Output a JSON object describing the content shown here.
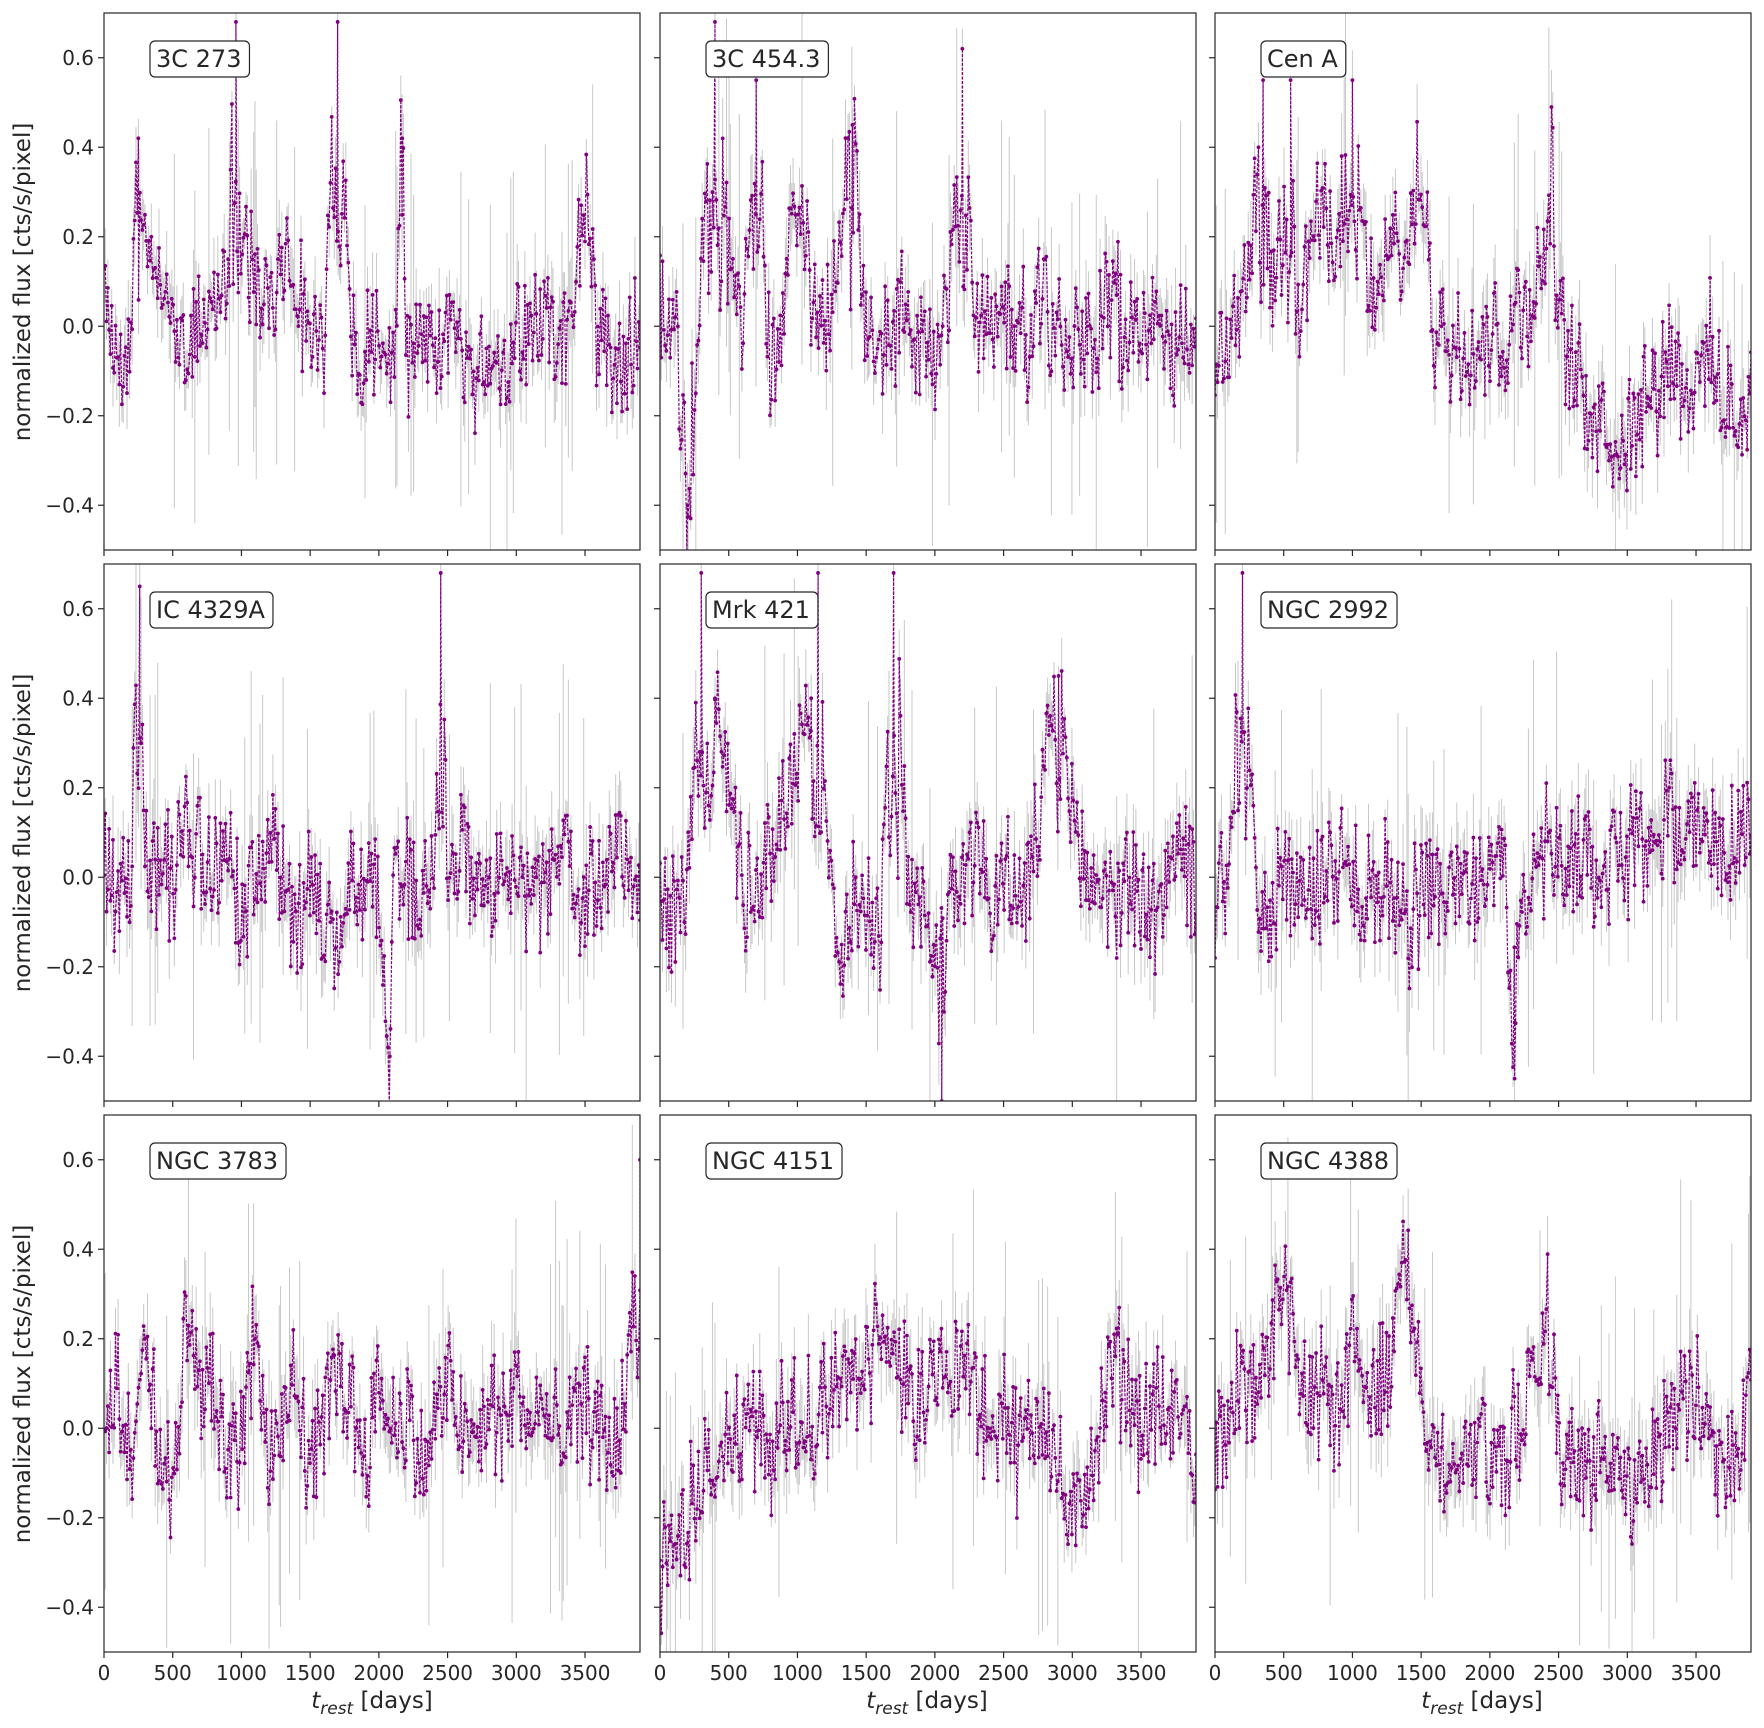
{
  "figure": {
    "ylabel": "normalized flux [cts/s/pixel]",
    "xlabel_main": "t",
    "xlabel_sub": "rest",
    "xlabel_unit": " [days]"
  },
  "colors": {
    "line": "#800080",
    "errorbar": "#c8c8c8",
    "axes": "#262626"
  },
  "chart_data": [
    {
      "type": "line",
      "title": "3C 273",
      "xlim": [
        0,
        3900
      ],
      "ylim": [
        -0.5,
        0.7
      ],
      "xticks": [
        0,
        500,
        1000,
        1500,
        2000,
        2500,
        3000,
        3500
      ],
      "yticks": [
        -0.4,
        -0.2,
        0.0,
        0.2,
        0.4,
        0.6
      ],
      "series": [
        {
          "x": [
            0,
            100,
            200,
            250,
            300,
            400,
            500,
            600,
            700,
            800,
            900,
            960,
            1000,
            1100,
            1200,
            1300,
            1400,
            1500,
            1600,
            1700,
            1800,
            1900,
            2000,
            2100,
            2170,
            2200,
            2300,
            2400,
            2500,
            2600,
            2700,
            2800,
            2900,
            3000,
            3100,
            3200,
            3300,
            3400,
            3500,
            3600,
            3700,
            3800,
            3900
          ],
          "y": [
            0.1,
            -0.1,
            0.0,
            0.42,
            0.15,
            0.1,
            0.05,
            -0.05,
            0.0,
            0.05,
            0.1,
            0.68,
            0.15,
            0.1,
            0.05,
            0.2,
            0.1,
            0.0,
            -0.05,
            0.68,
            -0.05,
            -0.05,
            0.0,
            -0.1,
            0.42,
            -0.05,
            -0.05,
            0.0,
            -0.05,
            -0.05,
            -0.1,
            -0.05,
            -0.1,
            -0.05,
            0.0,
            0.05,
            -0.05,
            0.0,
            0.3,
            -0.05,
            -0.1,
            -0.1,
            0.0
          ]
        }
      ]
    },
    {
      "type": "line",
      "title": "3C 454.3",
      "xlim": [
        0,
        3900
      ],
      "ylim": [
        -0.5,
        0.7
      ],
      "xticks": [
        0,
        500,
        1000,
        1500,
        2000,
        2500,
        3000,
        3500
      ],
      "yticks": [
        -0.4,
        -0.2,
        0.0,
        0.2,
        0.4,
        0.6
      ],
      "series": [
        {
          "x": [
            0,
            100,
            200,
            300,
            400,
            500,
            600,
            700,
            800,
            900,
            1000,
            1100,
            1200,
            1300,
            1400,
            1500,
            1600,
            1700,
            1800,
            1900,
            2000,
            2100,
            2200,
            2300,
            2400,
            2500,
            2600,
            2700,
            2800,
            2900,
            3000,
            3100,
            3200,
            3300,
            3400,
            3500,
            3600,
            3700,
            3800,
            3900
          ],
          "y": [
            0.0,
            0.05,
            -0.4,
            0.1,
            0.68,
            0.1,
            0.0,
            0.55,
            -0.1,
            0.0,
            0.3,
            0.1,
            0.0,
            0.2,
            0.45,
            0.0,
            -0.05,
            0.0,
            0.0,
            -0.05,
            -0.1,
            0.0,
            0.62,
            0.0,
            0.0,
            0.05,
            -0.05,
            0.0,
            0.05,
            -0.05,
            0.0,
            -0.05,
            0.0,
            0.05,
            0.0,
            -0.05,
            0.0,
            -0.05,
            0.0,
            -0.05
          ]
        }
      ]
    },
    {
      "type": "line",
      "title": "Cen A",
      "xlim": [
        0,
        3900
      ],
      "ylim": [
        -0.5,
        0.7
      ],
      "xticks": [
        0,
        500,
        1000,
        1500,
        2000,
        2500,
        3000,
        3500
      ],
      "yticks": [
        -0.4,
        -0.2,
        0.0,
        0.2,
        0.4,
        0.6
      ],
      "series": [
        {
          "x": [
            0,
            100,
            200,
            300,
            350,
            400,
            500,
            550,
            600,
            700,
            800,
            900,
            1000,
            1100,
            1200,
            1300,
            1400,
            1500,
            1600,
            1700,
            1800,
            1900,
            2000,
            2100,
            2200,
            2300,
            2400,
            2450,
            2500,
            2600,
            2700,
            2800,
            2900,
            3000,
            3100,
            3200,
            3300,
            3400,
            3500,
            3600,
            3700,
            3800,
            3900
          ],
          "y": [
            -0.1,
            -0.05,
            0.0,
            0.3,
            0.55,
            0.1,
            0.2,
            0.55,
            0.0,
            0.2,
            0.25,
            0.15,
            0.55,
            0.1,
            0.05,
            0.2,
            0.15,
            0.35,
            0.0,
            -0.05,
            0.0,
            -0.05,
            0.0,
            -0.05,
            0.05,
            0.05,
            0.15,
            0.35,
            0.0,
            -0.1,
            -0.15,
            -0.2,
            -0.25,
            -0.25,
            -0.15,
            -0.15,
            -0.05,
            -0.1,
            -0.15,
            -0.05,
            -0.2,
            -0.2,
            -0.15
          ]
        }
      ]
    },
    {
      "type": "line",
      "title": "IC 4329A",
      "xlim": [
        0,
        3900
      ],
      "ylim": [
        -0.5,
        0.7
      ],
      "xticks": [
        0,
        500,
        1000,
        1500,
        2000,
        2500,
        3000,
        3500
      ],
      "yticks": [
        -0.4,
        -0.2,
        0.0,
        0.2,
        0.4,
        0.6
      ],
      "series": [
        {
          "x": [
            0,
            100,
            200,
            260,
            300,
            400,
            500,
            600,
            700,
            800,
            900,
            1000,
            1100,
            1200,
            1300,
            1400,
            1500,
            1600,
            1700,
            1800,
            1900,
            2000,
            2080,
            2100,
            2200,
            2300,
            2400,
            2450,
            2500,
            2600,
            2700,
            2800,
            2900,
            3000,
            3100,
            3200,
            3300,
            3400,
            3500,
            3600,
            3700,
            3800,
            3900
          ],
          "y": [
            0.05,
            -0.05,
            0.0,
            0.65,
            0.0,
            0.05,
            0.0,
            0.1,
            0.05,
            0.0,
            0.05,
            -0.05,
            0.0,
            0.05,
            0.0,
            -0.1,
            -0.05,
            -0.1,
            -0.2,
            0.0,
            -0.05,
            0.0,
            -0.4,
            0.0,
            0.0,
            -0.05,
            0.05,
            0.68,
            0.0,
            0.05,
            0.0,
            -0.05,
            0.0,
            -0.05,
            0.0,
            -0.05,
            0.05,
            0.0,
            -0.05,
            0.0,
            0.05,
            0.0,
            0.0
          ]
        }
      ]
    },
    {
      "type": "line",
      "title": "Mrk 421",
      "xlim": [
        0,
        3900
      ],
      "ylim": [
        -0.5,
        0.7
      ],
      "xticks": [
        0,
        500,
        1000,
        1500,
        2000,
        2500,
        3000,
        3500
      ],
      "yticks": [
        -0.4,
        -0.2,
        0.0,
        0.2,
        0.4,
        0.6
      ],
      "series": [
        {
          "x": [
            0,
            100,
            200,
            300,
            400,
            500,
            600,
            700,
            800,
            900,
            1000,
            1100,
            1150,
            1200,
            1300,
            1400,
            1500,
            1600,
            1700,
            1800,
            1900,
            2000,
            2050,
            2100,
            2200,
            2300,
            2400,
            2500,
            2600,
            2700,
            2800,
            2900,
            3000,
            3100,
            3200,
            3300,
            3400,
            3500,
            3600,
            3700,
            3800,
            3900
          ],
          "y": [
            -0.05,
            -0.1,
            -0.05,
            0.68,
            0.4,
            0.2,
            0.0,
            -0.05,
            0.05,
            0.15,
            0.3,
            0.4,
            0.68,
            0.1,
            -0.2,
            -0.05,
            -0.05,
            -0.1,
            0.68,
            -0.05,
            -0.05,
            -0.1,
            -0.5,
            -0.05,
            0.0,
            0.1,
            -0.05,
            0.0,
            -0.05,
            0.0,
            0.2,
            0.45,
            0.1,
            0.0,
            0.0,
            -0.05,
            0.0,
            -0.05,
            -0.1,
            0.0,
            0.1,
            -0.05
          ]
        }
      ]
    },
    {
      "type": "line",
      "title": "NGC 2992",
      "xlim": [
        0,
        3900
      ],
      "ylim": [
        -0.5,
        0.7
      ],
      "xticks": [
        0,
        500,
        1000,
        1500,
        2000,
        2500,
        3000,
        3500
      ],
      "yticks": [
        -0.4,
        -0.2,
        0.0,
        0.2,
        0.4,
        0.6
      ],
      "series": [
        {
          "x": [
            0,
            100,
            200,
            300,
            400,
            500,
            600,
            700,
            800,
            900,
            1000,
            1100,
            1200,
            1300,
            1400,
            1500,
            1600,
            1700,
            1800,
            1900,
            2000,
            2100,
            2180,
            2200,
            2300,
            2400,
            2500,
            2600,
            2700,
            2800,
            2900,
            3000,
            3100,
            3200,
            3300,
            3400,
            3500,
            3600,
            3700,
            3800,
            3900
          ],
          "y": [
            -0.05,
            0.0,
            0.68,
            -0.05,
            -0.1,
            0.0,
            -0.05,
            0.0,
            -0.05,
            0.0,
            0.0,
            -0.05,
            0.0,
            -0.05,
            -0.1,
            -0.05,
            -0.05,
            -0.05,
            0.0,
            0.0,
            0.0,
            0.05,
            -0.45,
            -0.05,
            0.0,
            0.05,
            0.05,
            0.05,
            0.05,
            0.0,
            0.05,
            0.05,
            0.1,
            0.1,
            0.15,
            0.1,
            0.15,
            0.1,
            0.05,
            0.1,
            0.05
          ]
        }
      ]
    },
    {
      "type": "line",
      "title": "NGC 3783",
      "xlim": [
        0,
        3900
      ],
      "ylim": [
        -0.5,
        0.7
      ],
      "xticks": [
        0,
        500,
        1000,
        1500,
        2000,
        2500,
        3000,
        3500
      ],
      "yticks": [
        -0.4,
        -0.2,
        0.0,
        0.2,
        0.4,
        0.6
      ],
      "series": [
        {
          "x": [
            0,
            100,
            200,
            300,
            400,
            500,
            600,
            700,
            800,
            900,
            1000,
            1100,
            1200,
            1300,
            1400,
            1500,
            1600,
            1700,
            1800,
            1900,
            2000,
            2100,
            2200,
            2300,
            2400,
            2500,
            2600,
            2700,
            2800,
            2900,
            3000,
            3100,
            3200,
            3300,
            3400,
            3500,
            3600,
            3700,
            3800,
            3900
          ],
          "y": [
            0.0,
            0.1,
            -0.1,
            0.2,
            0.0,
            -0.2,
            0.3,
            0.05,
            0.1,
            -0.1,
            0.0,
            0.2,
            -0.05,
            0.05,
            0.1,
            -0.1,
            0.0,
            0.15,
            0.05,
            -0.05,
            0.1,
            0.0,
            0.05,
            -0.1,
            0.0,
            0.1,
            0.0,
            -0.05,
            0.05,
            0.0,
            0.1,
            0.0,
            0.05,
            -0.05,
            0.0,
            0.05,
            0.0,
            -0.05,
            0.05,
            0.6
          ]
        }
      ]
    },
    {
      "type": "line",
      "title": "NGC 4151",
      "xlim": [
        0,
        3900
      ],
      "ylim": [
        -0.5,
        0.7
      ],
      "xticks": [
        0,
        500,
        1000,
        1500,
        2000,
        2500,
        3000,
        3500
      ],
      "yticks": [
        -0.4,
        -0.2,
        0.0,
        0.2,
        0.4,
        0.6
      ],
      "series": [
        {
          "x": [
            0,
            100,
            200,
            300,
            400,
            500,
            600,
            700,
            800,
            900,
            1000,
            1100,
            1200,
            1300,
            1400,
            1500,
            1600,
            1700,
            1800,
            1900,
            2000,
            2100,
            2200,
            2300,
            2400,
            2500,
            2600,
            2700,
            2800,
            2900,
            3000,
            3100,
            3200,
            3300,
            3400,
            3500,
            3600,
            3700,
            3800,
            3900
          ],
          "y": [
            -0.3,
            -0.3,
            -0.2,
            -0.1,
            -0.1,
            -0.05,
            0.0,
            0.0,
            -0.05,
            0.0,
            0.05,
            0.0,
            0.05,
            0.1,
            0.1,
            0.15,
            0.2,
            0.15,
            0.1,
            0.05,
            0.1,
            0.15,
            0.2,
            0.05,
            0.0,
            0.05,
            -0.05,
            0.0,
            0.05,
            -0.1,
            -0.25,
            -0.1,
            0.0,
            0.15,
            0.1,
            0.0,
            0.05,
            0.0,
            0.05,
            -0.1
          ]
        }
      ]
    },
    {
      "type": "line",
      "title": "NGC 4388",
      "xlim": [
        0,
        3900
      ],
      "ylim": [
        -0.5,
        0.7
      ],
      "xticks": [
        0,
        500,
        1000,
        1500,
        2000,
        2500,
        3000,
        3500
      ],
      "yticks": [
        -0.4,
        -0.2,
        0.0,
        0.2,
        0.4,
        0.6
      ],
      "series": [
        {
          "x": [
            0,
            100,
            200,
            300,
            400,
            500,
            600,
            700,
            800,
            900,
            1000,
            1100,
            1200,
            1300,
            1400,
            1500,
            1600,
            1700,
            1800,
            1900,
            2000,
            2100,
            2200,
            2300,
            2400,
            2500,
            2600,
            2700,
            2800,
            2900,
            3000,
            3100,
            3200,
            3300,
            3400,
            3500,
            3600,
            3700,
            3800,
            3900
          ],
          "y": [
            -0.05,
            0.0,
            0.1,
            0.05,
            0.2,
            0.3,
            0.1,
            0.05,
            0.1,
            0.0,
            0.2,
            0.15,
            0.1,
            0.2,
            0.35,
            0.1,
            0.0,
            -0.1,
            -0.05,
            0.0,
            -0.1,
            -0.05,
            0.0,
            0.05,
            0.3,
            -0.05,
            -0.1,
            -0.1,
            -0.05,
            -0.1,
            -0.15,
            -0.1,
            -0.05,
            0.0,
            0.05,
            0.1,
            -0.05,
            -0.1,
            -0.05,
            0.1
          ]
        }
      ]
    }
  ]
}
